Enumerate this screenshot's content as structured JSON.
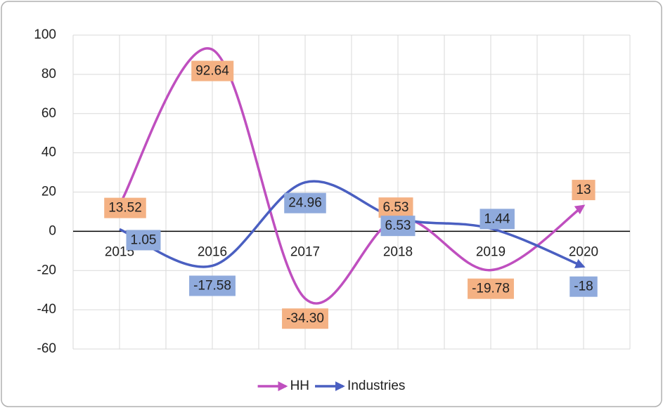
{
  "chart_data": {
    "type": "line",
    "categories": [
      "2015",
      "2016",
      "2017",
      "2018",
      "2019",
      "2020"
    ],
    "series": [
      {
        "name": "HH",
        "color": "#bf4fbf",
        "label_color": "#f4b183",
        "values": [
          13.52,
          92.64,
          -34.3,
          6.53,
          -19.78,
          13
        ],
        "value_labels": [
          "13.52",
          "92.64",
          "-34.30",
          "6.53",
          "-19.78",
          "13"
        ]
      },
      {
        "name": "Industries",
        "color": "#4a5fc1",
        "label_color": "#8faadc",
        "values": [
          1.05,
          -17.58,
          24.96,
          6.53,
          1.44,
          -18
        ],
        "value_labels": [
          "1.05",
          "-17.58",
          "24.96",
          "6.53",
          "1.44",
          "-18"
        ]
      }
    ],
    "ylim": [
      -60,
      100
    ],
    "yticks": [
      -60,
      -40,
      -20,
      0,
      20,
      40,
      60,
      80,
      100
    ],
    "grid": true,
    "legend": "bottom"
  }
}
